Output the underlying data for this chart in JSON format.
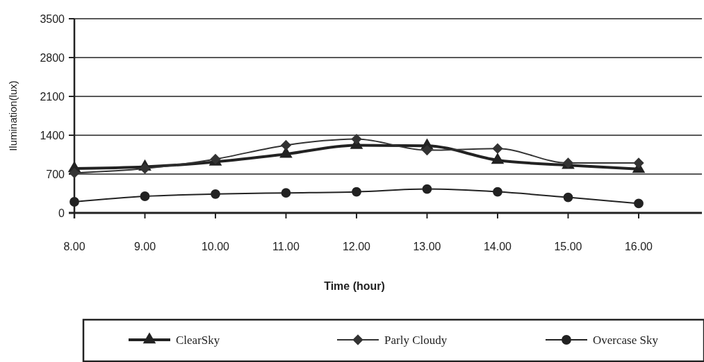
{
  "chart_data": {
    "type": "line",
    "xlabel": "Time (hour)",
    "ylabel": "Ilumination(lux)",
    "categories": [
      "8.00",
      "9.00",
      "10.00",
      "11.00",
      "12.00",
      "13.00",
      "14.00",
      "15.00",
      "16.00"
    ],
    "ylim": [
      0,
      3500
    ],
    "yticks": [
      0,
      700,
      1400,
      2100,
      2800,
      3500
    ],
    "grid": "y",
    "legend": "bottom",
    "line_style": "solid",
    "series": [
      {
        "name": "ClearSky",
        "color": "#222222",
        "marker": "triangle",
        "values": [
          800,
          830,
          920,
          1060,
          1220,
          1210,
          950,
          860,
          790
        ]
      },
      {
        "name": "Parly Cloudy",
        "color": "#333333",
        "marker": "diamond",
        "values": [
          720,
          800,
          970,
          1220,
          1330,
          1130,
          1160,
          900,
          900
        ]
      },
      {
        "name": "Overcase Sky",
        "color": "#222222",
        "marker": "circle",
        "values": [
          200,
          300,
          340,
          360,
          380,
          430,
          380,
          280,
          170
        ]
      }
    ]
  }
}
